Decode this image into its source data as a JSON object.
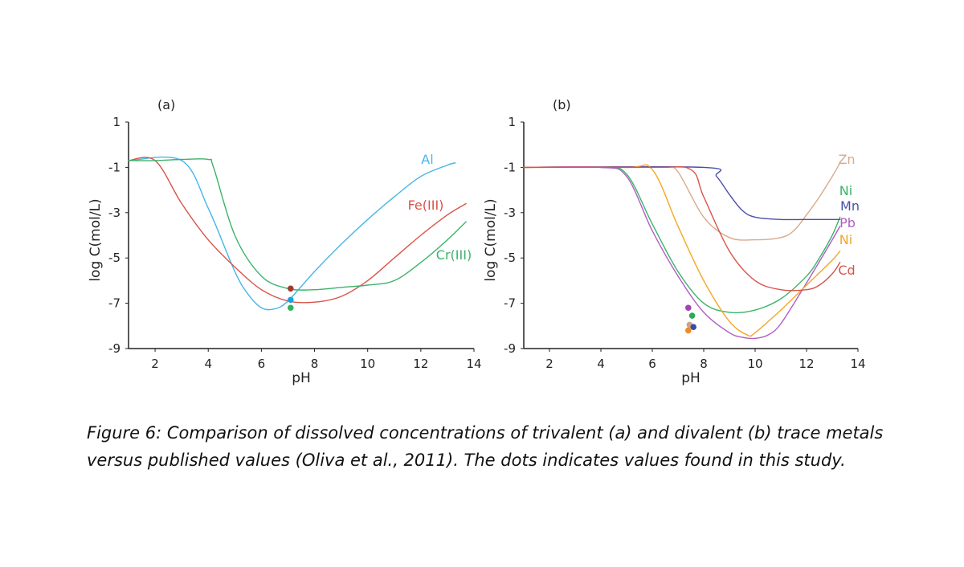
{
  "caption": "Figure 6: Comparison of dissolved concentrations of trivalent (a) and divalent (b) trace metals versus published values (Oliva et al., 2011). The dots indicates values found in this study.",
  "chart_data": [
    {
      "type": "line",
      "panel_label": "(a)",
      "xlabel": "pH",
      "ylabel": "log C(mol/L)",
      "xlim": [
        1,
        14
      ],
      "ylim": [
        -9,
        1
      ],
      "xticks": [
        2,
        4,
        6,
        8,
        10,
        12,
        14
      ],
      "yticks": [
        1,
        -1,
        -3,
        -5,
        -7,
        -9
      ],
      "grid": false,
      "series": [
        {
          "name": "Al",
          "color": "#45b6e8",
          "x": [
            1,
            3,
            4,
            5,
            5.5,
            6,
            6.5,
            7,
            8,
            9,
            10,
            11,
            12,
            13,
            13.3
          ],
          "y": [
            -0.7,
            -0.7,
            -2.8,
            -5.6,
            -6.6,
            -7.2,
            -7.25,
            -6.9,
            -5.6,
            -4.4,
            -3.3,
            -2.3,
            -1.4,
            -0.9,
            -0.8
          ]
        },
        {
          "name": "Fe(III)",
          "color": "#d9534a",
          "x": [
            1,
            2,
            3,
            4,
            5,
            6,
            7,
            8,
            9,
            10,
            11,
            12,
            13,
            13.7
          ],
          "y": [
            -0.7,
            -0.7,
            -2.6,
            -4.2,
            -5.4,
            -6.4,
            -6.9,
            -6.95,
            -6.7,
            -6.0,
            -5.0,
            -4.0,
            -3.1,
            -2.6
          ]
        },
        {
          "name": "Cr(III)",
          "color": "#3bb36a",
          "x": [
            1,
            2,
            3,
            4,
            4.2,
            5,
            6,
            7,
            8,
            9,
            10,
            11,
            12,
            13,
            13.7
          ],
          "y": [
            -0.7,
            -0.7,
            -0.65,
            -0.65,
            -1.0,
            -4.0,
            -5.8,
            -6.35,
            -6.4,
            -6.3,
            -6.2,
            -6.0,
            -5.2,
            -4.2,
            -3.4
          ]
        }
      ],
      "points": [
        {
          "x": 7.1,
          "y": -6.35,
          "color": "#a0392e"
        },
        {
          "x": 7.1,
          "y": -6.85,
          "color": "#1aa3df"
        },
        {
          "x": 7.1,
          "y": -7.2,
          "color": "#2fb35a"
        }
      ]
    },
    {
      "type": "line",
      "panel_label": "(b)",
      "xlabel": "pH",
      "ylabel": "log C(mol/L)",
      "xlim": [
        1,
        14
      ],
      "ylim": [
        -9,
        1
      ],
      "xticks": [
        2,
        4,
        6,
        8,
        10,
        12,
        14
      ],
      "yticks": [
        1,
        -1,
        -3,
        -5,
        -7,
        -9
      ],
      "grid": false,
      "series": [
        {
          "name": "Zn",
          "color": "#d9a98b",
          "x": [
            1,
            5,
            6.5,
            7,
            8,
            9,
            10,
            11,
            11.5,
            12,
            12.5,
            13,
            13.3
          ],
          "y": [
            -1,
            -1,
            -1,
            -1.2,
            -3.2,
            -4.1,
            -4.2,
            -4.1,
            -3.8,
            -3.1,
            -2.3,
            -1.4,
            -0.8
          ]
        },
        {
          "name": "Ni",
          "color": "#3bb36a",
          "x": [
            1,
            4,
            5,
            6,
            7,
            8,
            9,
            10,
            11,
            12,
            12.5,
            13,
            13.3
          ],
          "y": [
            -1,
            -1,
            -1.3,
            -3.5,
            -5.6,
            -7.0,
            -7.4,
            -7.3,
            -6.8,
            -5.8,
            -5.0,
            -4.0,
            -3.2
          ]
        },
        {
          "name": "Mn",
          "color": "#4a4fa5",
          "x": [
            1,
            8,
            8.5,
            9,
            9.5,
            10,
            11,
            12,
            13.3
          ],
          "y": [
            -1,
            -1,
            -1.4,
            -2.2,
            -2.9,
            -3.2,
            -3.3,
            -3.3,
            -3.3
          ]
        },
        {
          "name": "Pb",
          "color": "#b05ec4",
          "x": [
            1,
            4,
            5,
            6,
            7,
            8,
            9,
            9.5,
            10,
            10.5,
            11,
            12,
            13,
            13.3
          ],
          "y": [
            -1,
            -1,
            -1.4,
            -3.8,
            -5.8,
            -7.4,
            -8.3,
            -8.5,
            -8.55,
            -8.4,
            -7.9,
            -6.1,
            -4.2,
            -3.6
          ]
        },
        {
          "name": "Ni",
          "color": "#f5a623",
          "x": [
            1,
            5,
            6,
            7,
            8,
            9,
            9.7,
            10,
            11,
            12,
            13,
            13.3
          ],
          "y": [
            -1,
            -1,
            -1.1,
            -3.6,
            -6.0,
            -7.8,
            -8.4,
            -8.3,
            -7.3,
            -6.2,
            -5.1,
            -4.7
          ]
        },
        {
          "name": "Cd",
          "color": "#d9534a",
          "x": [
            1,
            6,
            7.5,
            8,
            9,
            10,
            11,
            12,
            12.5,
            13,
            13.3
          ],
          "y": [
            -1,
            -1,
            -1.1,
            -2.3,
            -4.7,
            -6.0,
            -6.4,
            -6.4,
            -6.2,
            -5.7,
            -5.2
          ]
        }
      ],
      "points": [
        {
          "x": 7.4,
          "y": -7.2,
          "color": "#a441b8"
        },
        {
          "x": 7.55,
          "y": -7.55,
          "color": "#2fa85a"
        },
        {
          "x": 7.45,
          "y": -7.95,
          "color": "#c9a585"
        },
        {
          "x": 7.6,
          "y": -8.05,
          "color": "#3b4aa8"
        },
        {
          "x": 7.4,
          "y": -8.2,
          "color": "#f08a24"
        }
      ]
    }
  ]
}
